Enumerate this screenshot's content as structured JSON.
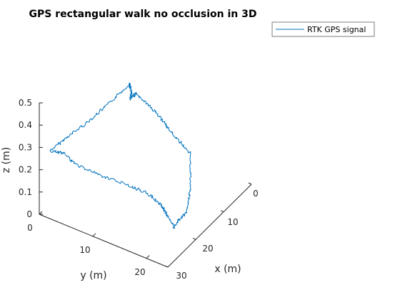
{
  "chart_data": {
    "type": "line",
    "projection": "3d",
    "title": "GPS rectangular walk no occlusion in 3D",
    "xlabel": "x (m)",
    "ylabel": "y (m)",
    "zlabel": "z (m)",
    "x_ticks": [
      "0",
      "10",
      "20",
      "30"
    ],
    "y_ticks": [
      "0",
      "10",
      "20"
    ],
    "z_ticks": [
      "0",
      "0.1",
      "0.2",
      "0.3",
      "0.4",
      "0.5"
    ],
    "xlim": [
      0,
      30
    ],
    "ylim": [
      0,
      24
    ],
    "zlim": [
      0,
      0.5
    ],
    "grid": false,
    "legend_position": "top-right",
    "color": "#0072BD",
    "series": [
      {
        "name": "RTK GPS signal",
        "x": [
          28,
          21.5,
          15,
          8.5,
          2,
          1.8,
          1.5,
          2.3,
          2.6,
          2.5,
          2.2,
          3.4,
          4.9,
          10,
          14.2,
          18.1,
          22,
          21,
          20.5,
          20.8,
          22.3,
          25,
          27.2,
          27.8,
          28
        ],
        "y": [
          1,
          1.2,
          1.6,
          1.9,
          2.3,
          2.2,
          2.4,
          2.6,
          3.8,
          6,
          8.2,
          11,
          15.2,
          17.8,
          19.3,
          20,
          21,
          19,
          17.8,
          15.8,
          13.2,
          9.5,
          5.4,
          3.5,
          1
        ],
        "z": [
          0.27,
          0.26,
          0.25,
          0.25,
          0.26,
          0.25,
          0.22,
          0.2,
          0.24,
          0.21,
          0.17,
          0.14,
          0.11,
          0.05,
          0.0,
          0.03,
          0.05,
          0.08,
          0.1,
          0.13,
          0.16,
          0.2,
          0.24,
          0.28,
          0.27
        ]
      }
    ]
  }
}
